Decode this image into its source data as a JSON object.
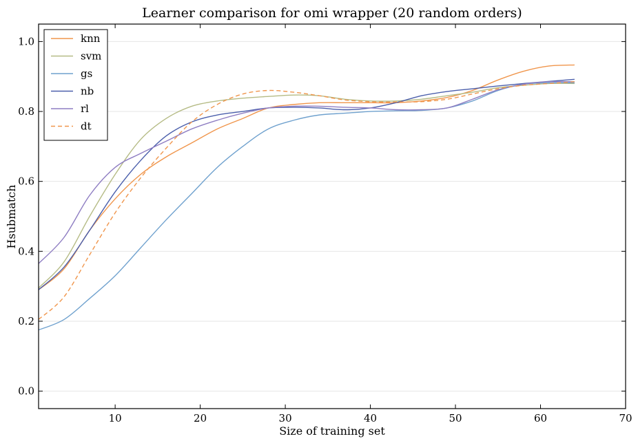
{
  "chart_data": {
    "type": "line",
    "title": "Learner comparison for omi wrapper (20 random orders)",
    "xlabel": "Size of training set",
    "ylabel": "Hsubmatch",
    "xlim": [
      1,
      70
    ],
    "ylim": [
      -0.05,
      1.05
    ],
    "xticks": [
      10,
      20,
      30,
      40,
      50,
      60,
      70
    ],
    "yticks": [
      0.0,
      0.2,
      0.4,
      0.6,
      0.8,
      1.0
    ],
    "xtick_labels": [
      "10",
      "20",
      "30",
      "40",
      "50",
      "60",
      "70"
    ],
    "ytick_labels": [
      "0.0",
      "0.2",
      "0.4",
      "0.6",
      "0.8",
      "1.0"
    ],
    "grid": "horizontal",
    "legend_position": "top-left",
    "x": [
      1,
      4,
      7,
      10,
      13,
      16,
      19,
      22,
      25,
      28,
      31,
      34,
      37,
      40,
      43,
      46,
      49,
      52,
      55,
      58,
      61,
      64
    ],
    "series": [
      {
        "name": "knn",
        "color": "#F0954B",
        "dash": false,
        "values": [
          0.29,
          0.35,
          0.46,
          0.55,
          0.62,
          0.67,
          0.71,
          0.75,
          0.78,
          0.81,
          0.82,
          0.825,
          0.825,
          0.825,
          0.825,
          0.83,
          0.84,
          0.86,
          0.89,
          0.915,
          0.93,
          0.933
        ]
      },
      {
        "name": "svm",
        "color": "#B5BB85",
        "dash": false,
        "values": [
          0.295,
          0.37,
          0.5,
          0.62,
          0.72,
          0.78,
          0.815,
          0.83,
          0.838,
          0.843,
          0.847,
          0.845,
          0.835,
          0.83,
          0.83,
          0.835,
          0.845,
          0.855,
          0.868,
          0.875,
          0.88,
          0.88
        ]
      },
      {
        "name": "gs",
        "color": "#6FA1CE",
        "dash": false,
        "values": [
          0.175,
          0.205,
          0.265,
          0.33,
          0.41,
          0.49,
          0.565,
          0.64,
          0.7,
          0.75,
          0.775,
          0.79,
          0.795,
          0.8,
          0.802,
          0.803,
          0.81,
          0.83,
          0.86,
          0.878,
          0.882,
          0.882
        ]
      },
      {
        "name": "nb",
        "color": "#4A5EAB",
        "dash": false,
        "values": [
          0.29,
          0.355,
          0.46,
          0.57,
          0.66,
          0.73,
          0.77,
          0.79,
          0.8,
          0.81,
          0.812,
          0.81,
          0.805,
          0.81,
          0.825,
          0.845,
          0.857,
          0.865,
          0.873,
          0.88,
          0.886,
          0.892
        ]
      },
      {
        "name": "rl",
        "color": "#8E7DC2",
        "dash": false,
        "values": [
          0.365,
          0.44,
          0.56,
          0.64,
          0.68,
          0.715,
          0.75,
          0.775,
          0.795,
          0.81,
          0.815,
          0.815,
          0.812,
          0.81,
          0.805,
          0.805,
          0.81,
          0.835,
          0.862,
          0.878,
          0.885,
          0.885
        ]
      },
      {
        "name": "dt",
        "color": "#F0954B",
        "dash": true,
        "values": [
          0.205,
          0.27,
          0.39,
          0.51,
          0.61,
          0.695,
          0.77,
          0.82,
          0.85,
          0.86,
          0.855,
          0.845,
          0.833,
          0.828,
          0.827,
          0.828,
          0.835,
          0.85,
          0.865,
          0.875,
          0.88,
          0.885
        ]
      }
    ]
  }
}
